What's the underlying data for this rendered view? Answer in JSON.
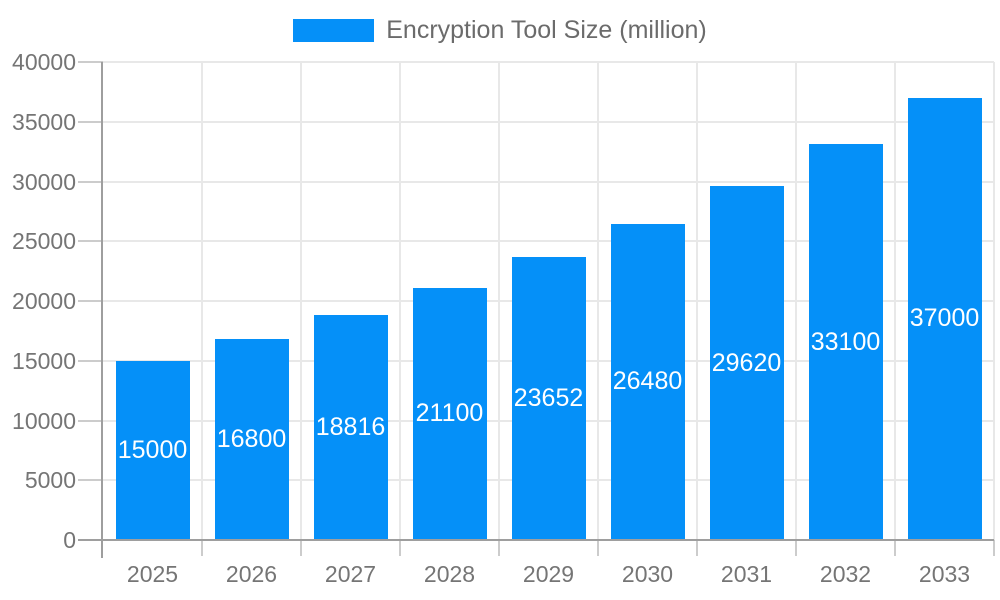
{
  "chart_data": {
    "type": "bar",
    "title": "Encryption Tool Size (million)",
    "categories": [
      "2025",
      "2026",
      "2027",
      "2028",
      "2029",
      "2030",
      "2031",
      "2032",
      "2033"
    ],
    "series": [
      {
        "name": "Encryption Tool Size (million)",
        "values": [
          15000,
          16800,
          18816,
          21100,
          23652,
          26480,
          29620,
          33100,
          37000
        ]
      }
    ],
    "bar_value_labels": [
      "15000",
      "16800",
      "18816",
      "21100",
      "23652",
      "26480",
      "29620",
      "33100",
      "37000"
    ],
    "ylim": [
      0,
      40000
    ],
    "ytick_step": 5000,
    "ytick_labels": [
      "0",
      "5000",
      "10000",
      "15000",
      "20000",
      "25000",
      "30000",
      "35000",
      "40000"
    ],
    "grid": true,
    "legend_position": "top",
    "colors": {
      "bar-color": "#0590f8",
      "bar-label-color": "#ffffff",
      "grid-color": "#e8e8e8",
      "tick-color": "#cccccc",
      "axis-color": "#9e9e9e",
      "axis-label-color": "#757575",
      "title-color": "#6b6b6b",
      "background": "#ffffff"
    }
  }
}
